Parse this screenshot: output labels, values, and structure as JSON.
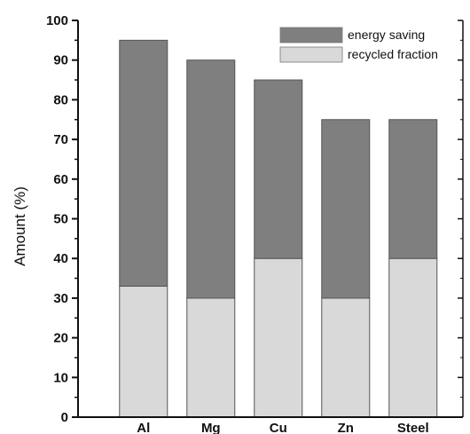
{
  "chart_data": {
    "type": "bar",
    "stacked": true,
    "categories": [
      "Al",
      "Mg",
      "Cu",
      "Zn",
      "Steel"
    ],
    "series": [
      {
        "name": "recycled fraction",
        "values": [
          33,
          30,
          40,
          30,
          40
        ],
        "color": "#d9d9d9"
      },
      {
        "name": "energy saving",
        "values": [
          62,
          60,
          45,
          45,
          35
        ],
        "color": "#7f7f7f"
      }
    ],
    "totals": [
      95,
      90,
      85,
      75,
      75
    ],
    "ylabel": "Amount (%)",
    "ylim": [
      0,
      100
    ],
    "yticks": [
      0,
      10,
      20,
      30,
      40,
      50,
      60,
      70,
      80,
      90,
      100
    ],
    "grid": false,
    "legend_position": "top-right",
    "legend_order": [
      "energy saving",
      "recycled fraction"
    ]
  }
}
